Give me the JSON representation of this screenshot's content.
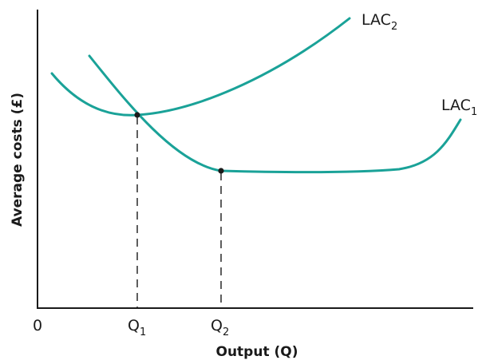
{
  "diagram": {
    "x_axis_label": "Output (Q)",
    "y_axis_label": "Average costs (£)",
    "origin_label": "0",
    "ticks": [
      {
        "base": "Q",
        "sub": "1"
      },
      {
        "base": "Q",
        "sub": "2"
      }
    ],
    "curves": [
      {
        "base": "LAC",
        "sub": "1"
      },
      {
        "base": "LAC",
        "sub": "2"
      }
    ],
    "curve_color": "#1aa298",
    "axis_color": "#1a1a1a"
  }
}
